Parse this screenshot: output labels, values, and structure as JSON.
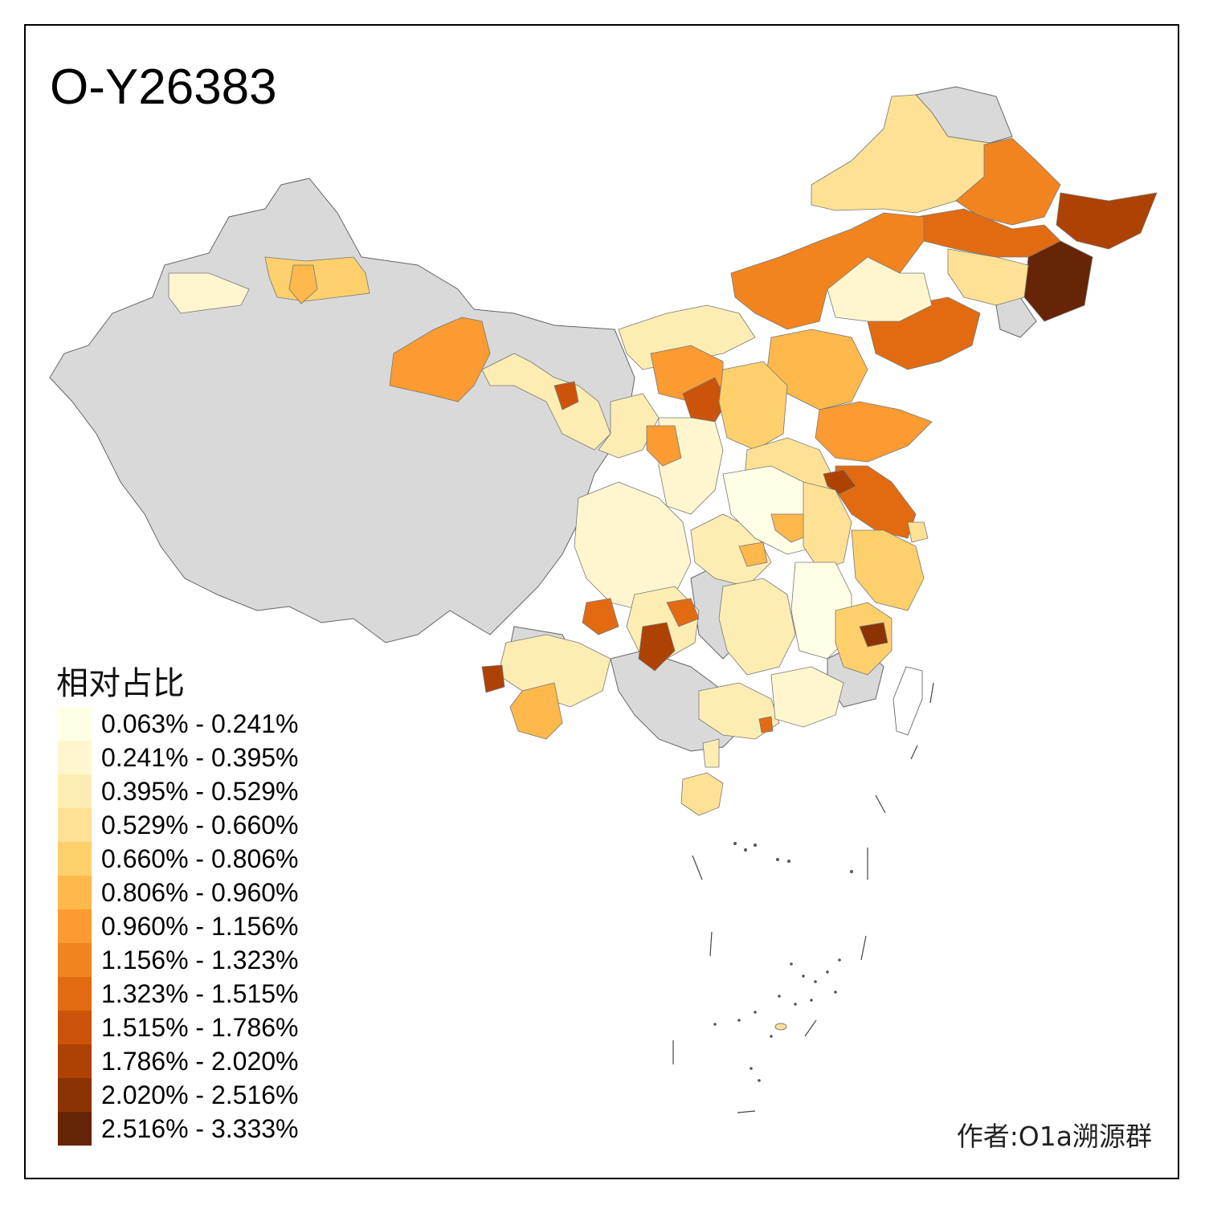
{
  "title": "O-Y26383",
  "legend": {
    "title": "相对占比",
    "items": [
      {
        "label": "0.063% - 0.241%",
        "color": "#FFFFE5"
      },
      {
        "label": "0.241% - 0.395%",
        "color": "#FFF6CF"
      },
      {
        "label": "0.395% - 0.529%",
        "color": "#FEEDB3"
      },
      {
        "label": "0.529% - 0.660%",
        "color": "#FEE195"
      },
      {
        "label": "0.660% - 0.806%",
        "color": "#FED06C"
      },
      {
        "label": "0.806% - 0.960%",
        "color": "#FEB84B"
      },
      {
        "label": "0.960% - 1.156%",
        "color": "#FB9B32"
      },
      {
        "label": "1.156% - 1.323%",
        "color": "#F1841F"
      },
      {
        "label": "1.323% - 1.515%",
        "color": "#E26B12"
      },
      {
        "label": "1.515% - 1.786%",
        "color": "#CC540A"
      },
      {
        "label": "1.786% - 2.020%",
        "color": "#AE4205"
      },
      {
        "label": "2.020% - 2.516%",
        "color": "#8C3304"
      },
      {
        "label": "2.516% - 3.333%",
        "color": "#662506"
      }
    ]
  },
  "credit": "作者:O1a溯源群",
  "colors": {
    "no_data": "#D9D9D9",
    "border": "#555555"
  }
}
